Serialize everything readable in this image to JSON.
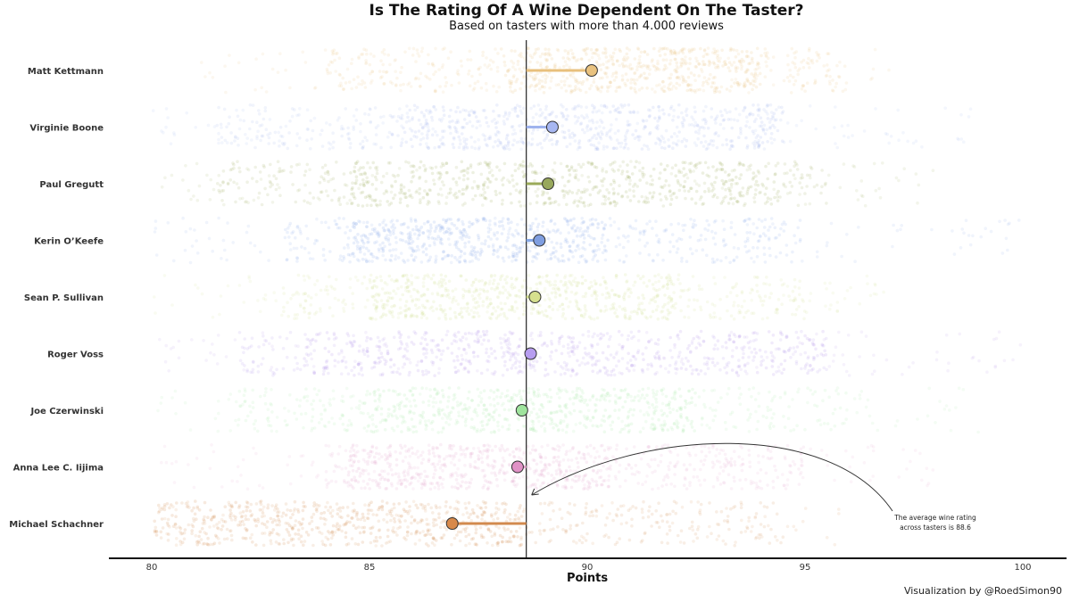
{
  "title": "Is The Rating Of A Wine Dependent On The Taster?",
  "subtitle": "Based on tasters with more than 4.000 reviews",
  "caption": "Visualization by @RoedSimon90",
  "chart_data": {
    "type": "scatter",
    "subtype": "jitter strip plot with lollipop means",
    "xlabel": "Points",
    "xlim": [
      79,
      101
    ],
    "xticks": [
      80,
      85,
      90,
      95,
      100
    ],
    "overall_mean": 88.6,
    "annotation": {
      "lines": [
        "The average wine rating",
        "across tasters is 88.6"
      ],
      "points_to_x": 88.6
    },
    "series": [
      {
        "name": "Matt Kettmann",
        "mean": 90.1,
        "min": 81,
        "max": 97,
        "core": [
          84,
          96
        ],
        "dense": [
          88,
          94
        ],
        "color": "#e8c07d",
        "dot_color": "#e9c27f"
      },
      {
        "name": "Virginie Boone",
        "mean": 89.2,
        "min": 80,
        "max": 99,
        "core": [
          81.5,
          94.5
        ],
        "dense": [
          85.5,
          94.5
        ],
        "color": "#9fb3ee",
        "dot_color": "#a7b7f2"
      },
      {
        "name": "Paul Gregutt",
        "mean": 89.1,
        "min": 80,
        "max": 98,
        "core": [
          81.5,
          95.5
        ],
        "dense": [
          84.5,
          94.5
        ],
        "color": "#9aaa58",
        "dot_color": "#98a85c"
      },
      {
        "name": "Kerin O’Keefe",
        "mean": 88.9,
        "min": 80,
        "max": 100,
        "core": [
          83,
          95
        ],
        "dense": [
          84.5,
          90.5
        ],
        "color": "#86a8e8",
        "dot_color": "#7f9ee0"
      },
      {
        "name": "Sean P. Sullivan",
        "mean": 88.8,
        "min": 80,
        "max": 97,
        "core": [
          83,
          95
        ],
        "dense": [
          85,
          92
        ],
        "color": "#cfdc8a",
        "dot_color": "#d6e08e"
      },
      {
        "name": "Roger Voss",
        "mean": 88.7,
        "min": 80,
        "max": 100,
        "core": [
          82,
          95.5
        ],
        "dense": [
          83.5,
          95.5
        ],
        "color": "#b191ea",
        "dot_color": "#b79df0"
      },
      {
        "name": "Joe Czerwinski",
        "mean": 88.5,
        "min": 80,
        "max": 99,
        "core": [
          82,
          96
        ],
        "dense": [
          85,
          92.5
        ],
        "color": "#a6e8a6",
        "dot_color": "#9fe49d"
      },
      {
        "name": "Anna Lee C. Iijima",
        "mean": 88.4,
        "min": 80,
        "max": 98,
        "core": [
          84,
          95
        ],
        "dense": [
          84.5,
          90.5
        ],
        "color": "#e4a6cf",
        "dot_color": "#e092c6"
      },
      {
        "name": "Michael Schachner",
        "mean": 86.9,
        "min": 80,
        "max": 96,
        "core": [
          80,
          94.5
        ],
        "dense": [
          80,
          88.5
        ],
        "color": "#d28a4e",
        "dot_color": "#d8894a"
      }
    ]
  }
}
